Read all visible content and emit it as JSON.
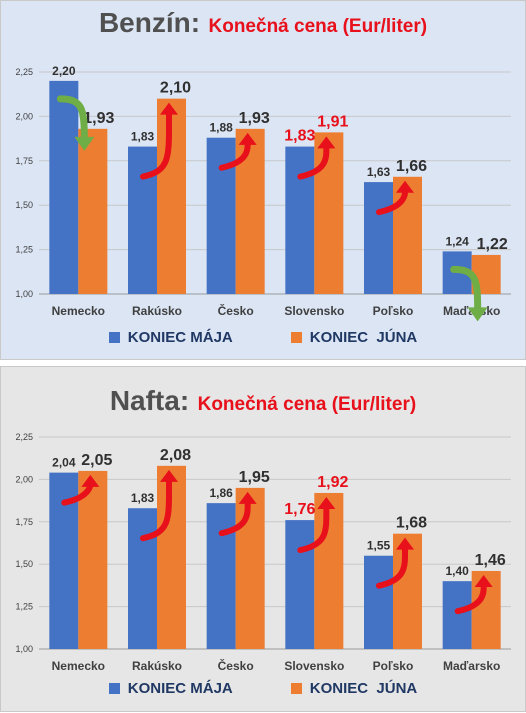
{
  "colors": {
    "series_may": "#4472c4",
    "series_june": "#ed7d31",
    "highlight": "#e8101a",
    "arrow_up": "#e8101a",
    "arrow_down": "#6fad47"
  },
  "chart_data": [
    {
      "type": "bar",
      "title": "Benzín:",
      "subtitle": "Konečná cena (Eur/liter)",
      "categories": [
        "Nemecko",
        "Rakúsko",
        "Česko",
        "Slovensko",
        "Poľsko",
        "Maďarsko"
      ],
      "series": [
        {
          "name": "KONIEC MÁJA",
          "values": [
            2.2,
            1.83,
            1.88,
            1.83,
            1.63,
            1.24
          ]
        },
        {
          "name": "KONIEC  JÚNA",
          "values": [
            1.93,
            2.1,
            1.93,
            1.91,
            1.66,
            1.22
          ]
        }
      ],
      "value_labels": [
        [
          "2,20",
          "1,83",
          "1,88",
          "1,83",
          "1,63",
          "1,24"
        ],
        [
          "1,93",
          "2,10",
          "1,93",
          "1,91",
          "1,66",
          "1,22"
        ]
      ],
      "highlighted_category": "Slovensko",
      "trend_arrows": [
        "down",
        "up",
        "up",
        "up",
        "up",
        "down"
      ],
      "ylim": [
        1.0,
        2.25
      ],
      "yticks": [
        "1,00",
        "1,25",
        "1,50",
        "1,75",
        "2,00",
        "2,25"
      ],
      "grid": true,
      "legend_position": "bottom"
    },
    {
      "type": "bar",
      "title": "Nafta:",
      "subtitle": "Konečná cena (Eur/liter)",
      "categories": [
        "Nemecko",
        "Rakúsko",
        "Česko",
        "Slovensko",
        "Poľsko",
        "Maďarsko"
      ],
      "series": [
        {
          "name": "KONIEC MÁJA",
          "values": [
            2.04,
            1.83,
            1.86,
            1.76,
            1.55,
            1.4
          ]
        },
        {
          "name": "KONIEC  JÚNA",
          "values": [
            2.05,
            2.08,
            1.95,
            1.92,
            1.68,
            1.46
          ]
        }
      ],
      "value_labels": [
        [
          "2,04",
          "1,83",
          "1,86",
          "1,76",
          "1,55",
          "1,40"
        ],
        [
          "2,05",
          "2,08",
          "1,95",
          "1,92",
          "1,68",
          "1,46"
        ]
      ],
      "highlighted_category": "Slovensko",
      "trend_arrows": [
        "up",
        "up",
        "up",
        "up",
        "up",
        "up"
      ],
      "ylim": [
        1.0,
        2.25
      ],
      "yticks": [
        "1,00",
        "1,25",
        "1,50",
        "1,75",
        "2,00",
        "2,25"
      ],
      "grid": true,
      "legend_position": "bottom"
    }
  ]
}
